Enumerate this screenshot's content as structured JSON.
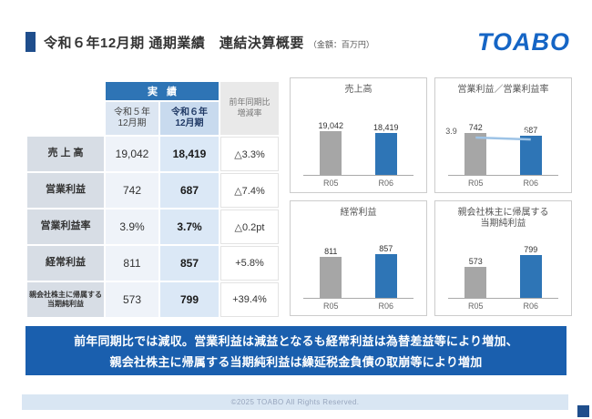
{
  "header": {
    "title": "令和６年12月期 通期業績　連結決算概要",
    "unit_note": "（金額：百万円）",
    "logo": "TOABO"
  },
  "table": {
    "group_header": "実績",
    "col_headers": [
      "令和５年\n12月期",
      "令和６年\n12月期"
    ],
    "change_header": "前年同期比\n増減率",
    "rows": [
      {
        "label": "売 上 高",
        "r05": "19,042",
        "r06": "18,419",
        "change": "△3.3%"
      },
      {
        "label": "営業利益",
        "r05": "742",
        "r06": "687",
        "change": "△7.4%"
      },
      {
        "label": "営業利益率",
        "r05": "3.9%",
        "r06": "3.7%",
        "change": "△0.2pt"
      },
      {
        "label": "経常利益",
        "r05": "811",
        "r06": "857",
        "change": "+5.8%"
      },
      {
        "label": "親会社株主に帰属する\n当期純利益",
        "r05": "573",
        "r06": "799",
        "change": "+39.4%"
      }
    ]
  },
  "chart_data": [
    {
      "type": "bar",
      "title": "売上高",
      "categories": [
        "R05",
        "R06"
      ],
      "values": [
        19042,
        18419
      ],
      "labels": [
        "19,042",
        "18,419"
      ],
      "colors": [
        "#a6a6a6",
        "#2e75b6"
      ],
      "ylim": [
        0,
        20000
      ]
    },
    {
      "type": "bar+line",
      "title": "営業利益／営業利益率",
      "categories": [
        "R05",
        "R06"
      ],
      "values": [
        742,
        687
      ],
      "labels": [
        "742",
        "687"
      ],
      "line_values": [
        3.9,
        3.7
      ],
      "line_labels": [
        "3.9",
        "3.7"
      ],
      "line_color": "#9dc3e6",
      "line_ylim": [
        0,
        8
      ],
      "colors": [
        "#a6a6a6",
        "#2e75b6"
      ],
      "ylim": [
        0,
        800
      ]
    },
    {
      "type": "bar",
      "title": "経常利益",
      "categories": [
        "R05",
        "R06"
      ],
      "values": [
        811,
        857
      ],
      "labels": [
        "811",
        "857"
      ],
      "colors": [
        "#a6a6a6",
        "#2e75b6"
      ],
      "ylim": [
        0,
        900
      ]
    },
    {
      "type": "bar",
      "title": "親会社株主に帰属する\n当期純利益",
      "categories": [
        "R05",
        "R06"
      ],
      "values": [
        573,
        799
      ],
      "labels": [
        "573",
        "799"
      ],
      "colors": [
        "#a6a6a6",
        "#2e75b6"
      ],
      "ylim": [
        0,
        850
      ]
    }
  ],
  "banner": {
    "line1": "前年同期比では減収。営業利益は減益となるも経常利益は為替差益等により増加、",
    "line2": "親会社株主に帰属する当期純利益は繰延税金負債の取崩等により増加"
  },
  "footer": {
    "copyright": "©2025 TOABO All Rights Reserved."
  },
  "colors": {
    "brand_blue": "#1565c5",
    "accent_dark_blue": "#1f4e8c",
    "table_header_blue": "#2e74b5",
    "banner_blue": "#1a5fae",
    "bar_gray": "#a6a6a6",
    "bar_blue": "#2e75b6",
    "margin_line_blue": "#9dc3e6"
  }
}
